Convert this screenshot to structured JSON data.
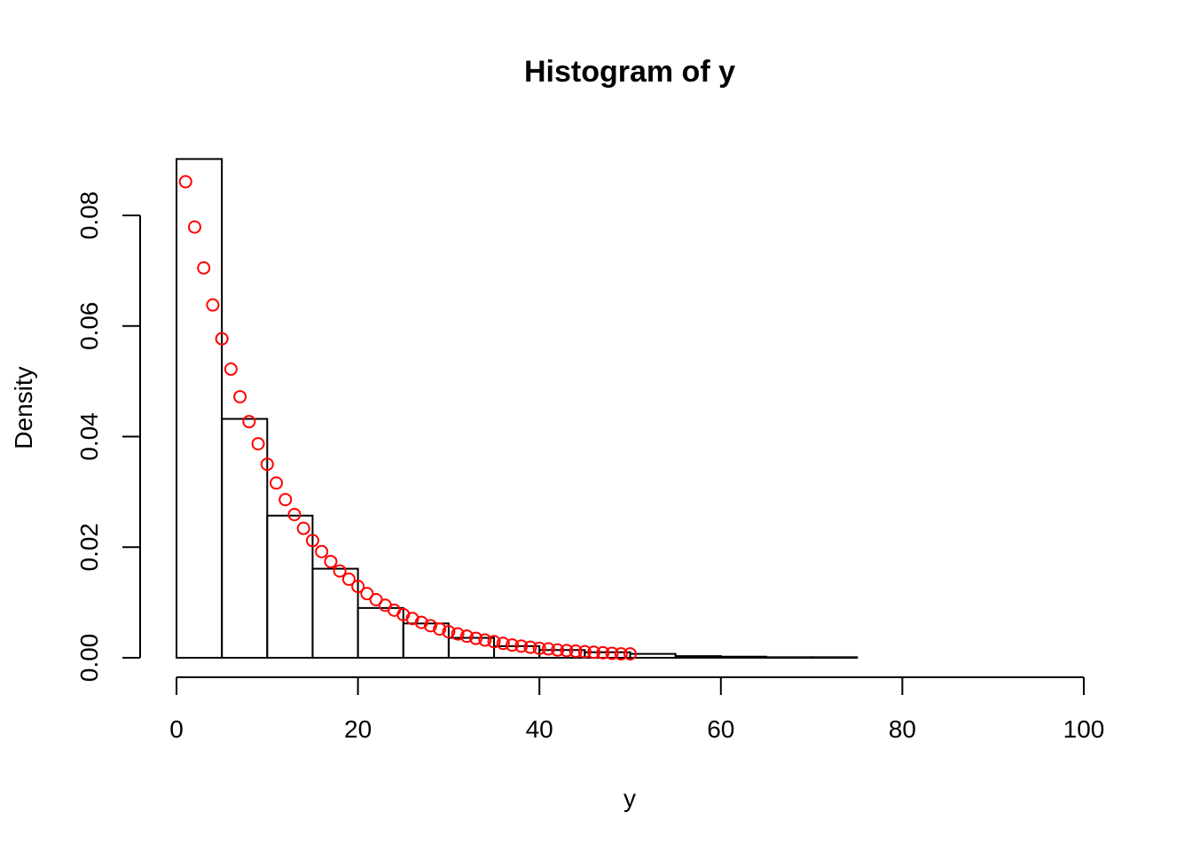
{
  "chart_data": {
    "type": "bar",
    "title": "Histogram of y",
    "xlabel": "y",
    "ylabel": "Density",
    "xlim": [
      0,
      100
    ],
    "ylim": [
      0,
      0.08
    ],
    "x_ticks": [
      0,
      20,
      40,
      60,
      80,
      100
    ],
    "x_tick_labels": [
      "0",
      "20",
      "40",
      "60",
      "80",
      "100"
    ],
    "y_ticks": [
      0,
      0.02,
      0.04,
      0.06,
      0.08
    ],
    "y_tick_labels": [
      "0.00",
      "0.02",
      "0.04",
      "0.06",
      "0.08"
    ],
    "histogram": {
      "breaks": [
        0,
        5,
        10,
        15,
        20,
        25,
        30,
        35,
        40,
        45,
        50,
        55,
        60,
        65,
        70,
        75,
        80,
        85,
        90,
        95,
        100
      ],
      "density": [
        0.0902,
        0.0432,
        0.0257,
        0.0161,
        0.009,
        0.0062,
        0.0036,
        0.0021,
        0.0014,
        0.001,
        0.0007,
        0.0003,
        0.0002,
        0.0001,
        0.0001,
        0.0,
        0.0,
        0.0,
        0.0,
        0.0
      ]
    },
    "points": {
      "color": "#ff0000",
      "x": [
        1,
        2,
        3,
        4,
        5,
        6,
        7,
        8,
        9,
        10,
        11,
        12,
        13,
        14,
        15,
        16,
        17,
        18,
        19,
        20,
        21,
        22,
        23,
        24,
        25,
        26,
        27,
        28,
        29,
        30,
        31,
        32,
        33,
        34,
        35,
        36,
        37,
        38,
        39,
        40,
        41,
        42,
        43,
        44,
        45,
        46,
        47,
        48,
        49,
        50
      ],
      "y": [
        0.0861,
        0.0779,
        0.0705,
        0.0638,
        0.0577,
        0.0522,
        0.0472,
        0.0427,
        0.0387,
        0.035,
        0.0316,
        0.0286,
        0.0259,
        0.0234,
        0.0212,
        0.0192,
        0.0174,
        0.0157,
        0.0142,
        0.0129,
        0.0116,
        0.0105,
        0.0095,
        0.0086,
        0.0078,
        0.0071,
        0.0064,
        0.0058,
        0.0052,
        0.0047,
        0.0043,
        0.0039,
        0.0035,
        0.0032,
        0.0029,
        0.0026,
        0.0023,
        0.0021,
        0.0019,
        0.0017,
        0.0016,
        0.0014,
        0.0013,
        0.0012,
        0.0011,
        0.001,
        0.0009,
        0.0008,
        0.0007,
        0.0007
      ]
    },
    "grid": false,
    "legend": "none"
  }
}
